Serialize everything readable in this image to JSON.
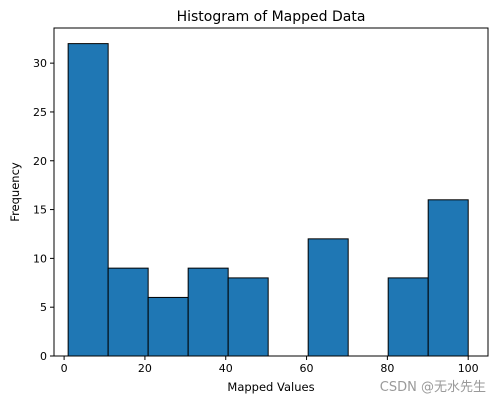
{
  "chart_data": {
    "type": "bar",
    "title": "Histogram of Mapped Data",
    "xlabel": "Mapped Values",
    "ylabel": "Frequency",
    "bin_edges": [
      1,
      10.9,
      20.8,
      30.7,
      40.6,
      50.5,
      60.4,
      70.3,
      80.2,
      90.1,
      100
    ],
    "counts": [
      32,
      9,
      6,
      9,
      8,
      0,
      12,
      0,
      8,
      16
    ],
    "xlim": [
      -2.5,
      104.9
    ],
    "ylim": [
      0,
      33.6
    ],
    "xticks": [
      0,
      20,
      40,
      60,
      80,
      100
    ],
    "yticks": [
      0,
      5,
      10,
      15,
      20,
      25,
      30
    ],
    "grid": false,
    "bar_color": "#1f77b4",
    "edge_color": "#000000"
  },
  "watermark": "CSDN @无水先生"
}
